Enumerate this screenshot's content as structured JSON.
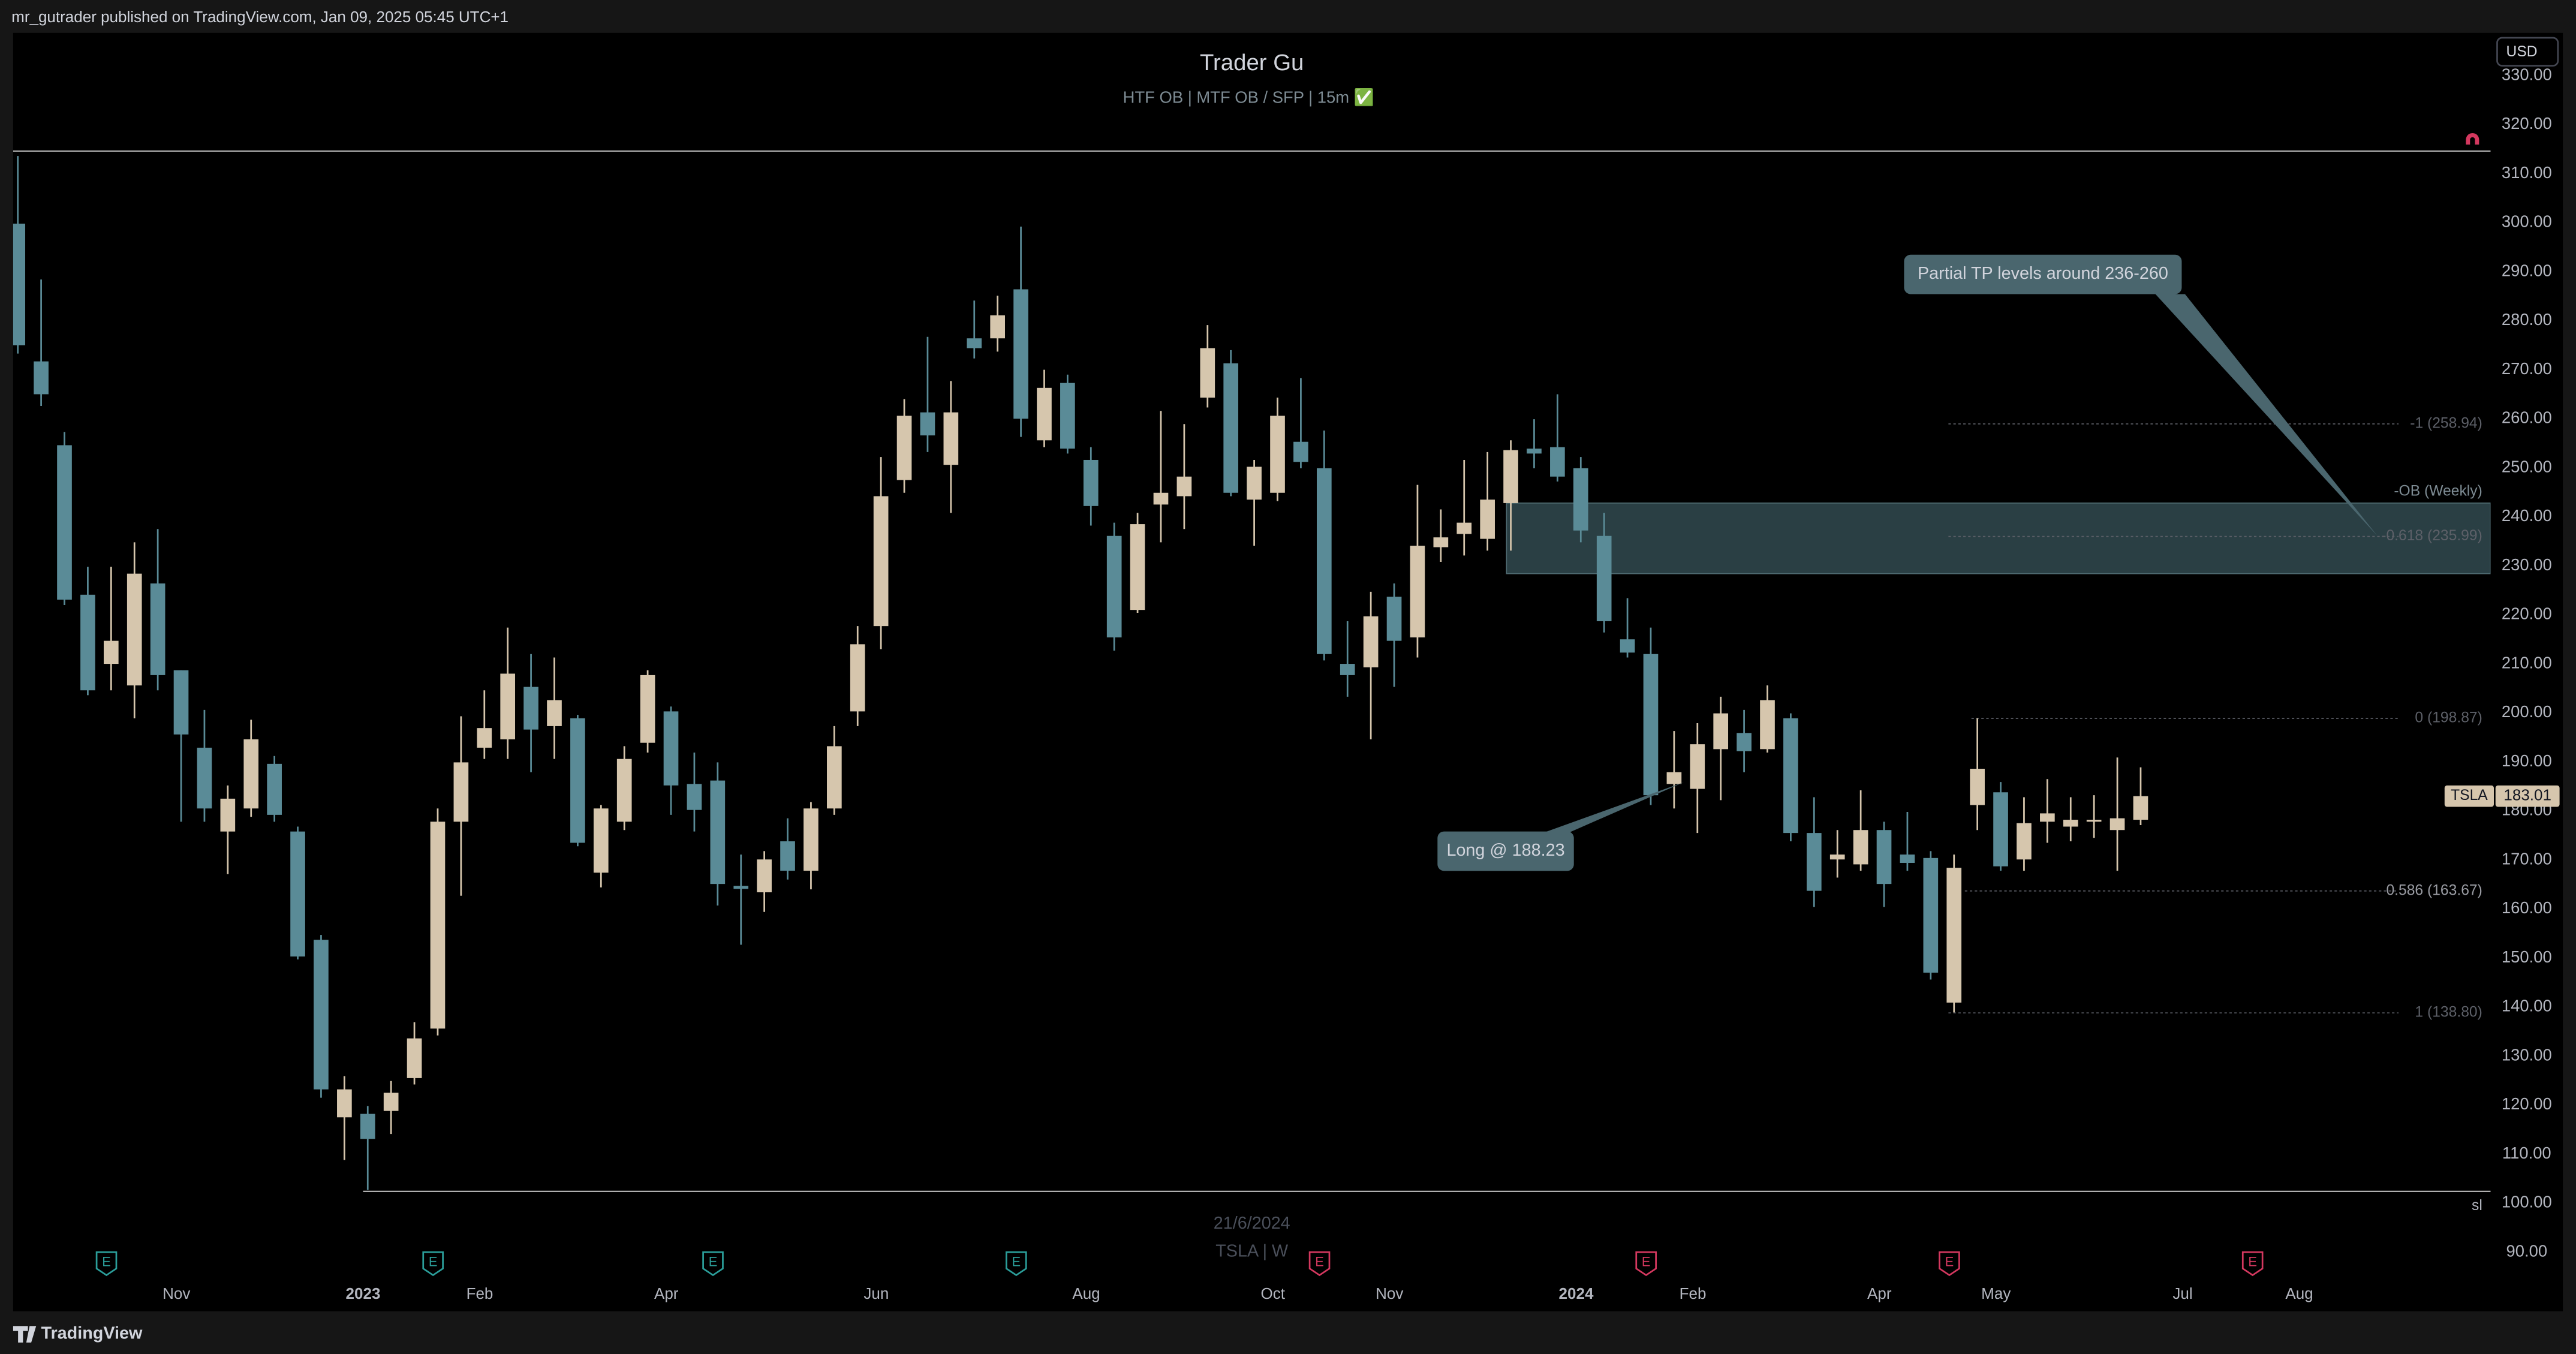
{
  "header": {
    "text": "mr_gutrader published on TradingView.com, Jan 09, 2025 05:45 UTC+1"
  },
  "footer": {
    "brand": "TradingView"
  },
  "chart_data": {
    "type": "candlestick",
    "title": "Trader Gu",
    "subtitle": "HTF OB  |  MTF OB / SFP  |  15m ✅",
    "currency": "USD",
    "watermark_date": "21/6/2024",
    "watermark_symbol": "TSLA | W",
    "up_color": "#d6c6ad",
    "down_color": "#5a8b97",
    "open": [
      299.8,
      271.7,
      254.6,
      224.1,
      210,
      205.6,
      226.4,
      208.7,
      192.9,
      175.8,
      180.5,
      189.6,
      175.8,
      153.7,
      117.5,
      118.2,
      118.8,
      125.5,
      135.6,
      177.8,
      192.9,
      194.6,
      205.3,
      197.3,
      198.9,
      167.4,
      177.8,
      193.9,
      200.3,
      185.5,
      186.2,
      164.7,
      163.4,
      173.8,
      167.8,
      180.5,
      200.3,
      217.7,
      247.5,
      261.3,
      250.6,
      276.4,
      276.4,
      286.4,
      255.6,
      267.3,
      251.6,
      236.1,
      221,
      242.5,
      244.2,
      264.3,
      271.3,
      243.5,
      244.9,
      255.3,
      249.9,
      210,
      209.3,
      223.7,
      215.4,
      233.8,
      236.5,
      235.5,
      242.8,
      253.9,
      254.2,
      249.9,
      236.1,
      215,
      212,
      185.5,
      184.5,
      192.6,
      195.9,
      192.6,
      198.9,
      175.5,
      170.1,
      169.1,
      176.1,
      171.1,
      170.4,
      140.9,
      181.2,
      183.8,
      170.1,
      177.8,
      176.8,
      177.8,
      176.1,
      178.2
    ],
    "high": [
      313.6,
      288.4,
      257.3,
      229.8,
      229.8,
      234.8,
      237.5,
      208.7,
      200.6,
      185.2,
      198.6,
      191.2,
      176.8,
      154.7,
      125.9,
      119.8,
      124.9,
      136.9,
      180.5,
      199.3,
      204.6,
      217.4,
      212,
      211.3,
      199.6,
      181.2,
      193.2,
      208.7,
      201.3,
      191.9,
      189.9,
      171.1,
      171.8,
      178.5,
      181.8,
      197.3,
      217.7,
      252.2,
      264,
      276.7,
      267.7,
      284.1,
      285.1,
      299.2,
      270,
      269,
      254.2,
      238.8,
      240.8,
      261.6,
      258.9,
      279.1,
      274,
      251.6,
      264.3,
      268.3,
      257.6,
      218.7,
      224.7,
      226.4,
      246.5,
      241.5,
      251.6,
      253.2,
      255.6,
      259.9,
      265,
      252.2,
      240.8,
      223.4,
      217.4,
      196.3,
      197.9,
      203.3,
      200.6,
      205.6,
      199.9,
      182.8,
      176.1,
      184.2,
      177.8,
      179.8,
      171.8,
      171.1,
      198.9,
      185.9,
      182.8,
      186.5,
      182.8,
      183.2,
      190.9,
      188.9
    ],
    "low": [
      273.3,
      262.6,
      222,
      203.6,
      204.6,
      198.9,
      204.6,
      177.8,
      177.8,
      167.1,
      178.8,
      177.8,
      149.7,
      121.5,
      108.8,
      102.7,
      114.1,
      124.2,
      134.2,
      162.7,
      190.6,
      190.6,
      187.9,
      190.6,
      172.8,
      164.4,
      176.1,
      191.9,
      179.2,
      175.8,
      160.7,
      152.7,
      159.4,
      166,
      164,
      179.2,
      197.3,
      213,
      244.9,
      253.2,
      240.8,
      272.3,
      273.7,
      256.3,
      254.2,
      252.9,
      238.2,
      212.7,
      220.4,
      234.8,
      237.5,
      262.3,
      244.2,
      234.1,
      243.2,
      249.9,
      210.7,
      203.3,
      194.6,
      205.3,
      211.3,
      230.8,
      232.1,
      233.1,
      233.1,
      249.9,
      247.2,
      234.8,
      216.4,
      211.3,
      181.2,
      180.5,
      175.5,
      182.2,
      187.9,
      191.9,
      173.8,
      160.4,
      166.4,
      167.8,
      160.4,
      167.8,
      145.6,
      138.9,
      176.1,
      167.8,
      167.8,
      173.5,
      173.8,
      174.5,
      167.8,
      177.1
    ],
    "close": [
      275,
      265,
      223.1,
      204.6,
      214.7,
      228.4,
      207.7,
      195.6,
      180.5,
      182.5,
      194.6,
      179.2,
      150.3,
      123.2,
      123.2,
      113.1,
      122.5,
      133.6,
      177.8,
      189.9,
      196.9,
      208,
      196.6,
      202.6,
      173.5,
      180.5,
      190.6,
      207.7,
      185.2,
      180.2,
      165.1,
      164.1,
      170.1,
      167.8,
      180.5,
      193.2,
      214,
      244.2,
      260.6,
      256.6,
      261.3,
      274.4,
      281.1,
      260,
      266.3,
      253.9,
      242.2,
      215.4,
      238.5,
      244.9,
      248.2,
      274.4,
      244.9,
      250.2,
      260.6,
      251.2,
      212,
      207.7,
      219.7,
      214.7,
      234.1,
      235.8,
      238.8,
      243.5,
      253.6,
      252.9,
      248.2,
      237.2,
      218.7,
      212.3,
      183.2,
      187.9,
      193.6,
      199.9,
      192.2,
      202.6,
      175.5,
      163.7,
      171.1,
      176.1,
      165.1,
      169.4,
      147,
      168.4,
      188.6,
      168.7,
      177.5,
      179.5,
      178.2,
      178.2,
      178.5,
      183.01
    ],
    "xlim": [
      -0.2,
      106
    ],
    "xticks": [
      {
        "value": 6.8,
        "label": "Nov"
      },
      {
        "value": 14.8,
        "label": "2023"
      },
      {
        "value": 19.8,
        "label": "Feb"
      },
      {
        "value": 27.8,
        "label": "Apr"
      },
      {
        "value": 36.8,
        "label": "Jun"
      },
      {
        "value": 45.8,
        "label": "Aug"
      },
      {
        "value": 53.8,
        "label": "Oct"
      },
      {
        "value": 58.8,
        "label": "Nov"
      },
      {
        "value": 66.8,
        "label": "2024"
      },
      {
        "value": 71.8,
        "label": "Feb"
      },
      {
        "value": 79.8,
        "label": "Apr"
      },
      {
        "value": 84.8,
        "label": "May"
      },
      {
        "value": 92.8,
        "label": "Jul"
      },
      {
        "value": 97.8,
        "label": "Aug"
      }
    ],
    "ylim": [
      90,
      330
    ],
    "yticks": [
      {
        "value": 330,
        "label": "330.00"
      },
      {
        "value": 320,
        "label": "320.00"
      },
      {
        "value": 310,
        "label": "310.00"
      },
      {
        "value": 300,
        "label": "300.00"
      },
      {
        "value": 290,
        "label": "290.00"
      },
      {
        "value": 280,
        "label": "280.00"
      },
      {
        "value": 270,
        "label": "270.00"
      },
      {
        "value": 260,
        "label": "260.00"
      },
      {
        "value": 250,
        "label": "250.00"
      },
      {
        "value": 240,
        "label": "240.00"
      },
      {
        "value": 230,
        "label": "230.00"
      },
      {
        "value": 220,
        "label": "220.00"
      },
      {
        "value": 210,
        "label": "210.00"
      },
      {
        "value": 200,
        "label": "200.00"
      },
      {
        "value": 190,
        "label": "190.00"
      },
      {
        "value": 180,
        "label": "180.00"
      },
      {
        "value": 170,
        "label": "170.00"
      },
      {
        "value": 160,
        "label": "160.00"
      },
      {
        "value": 150,
        "label": "150.00"
      },
      {
        "value": 140,
        "label": "140.00"
      },
      {
        "value": 130,
        "label": "130.00"
      },
      {
        "value": 120,
        "label": "120.00"
      },
      {
        "value": 110,
        "label": "110.00"
      },
      {
        "value": 100,
        "label": "100.00"
      },
      {
        "value": 90,
        "label": "90.00"
      }
    ],
    "hline": 314.6,
    "sl_line": {
      "label": "sl",
      "value": 102.4
    },
    "ob_zone": {
      "label": "-OB (Weekly)",
      "low": 228.4,
      "high": 242.8
    },
    "fib_levels": [
      {
        "label": "-1 (258.94)",
        "value": 258.94
      },
      {
        "label": "-0.618 (235.99)",
        "value": 235.99
      },
      {
        "label": "0 (198.87)",
        "value": 198.87
      },
      {
        "label": "0.586 (163.67)",
        "value": 163.67
      },
      {
        "label": "1 (138.80)",
        "value": 138.8
      }
    ],
    "callouts": [
      {
        "text": "Partial TP levels around 236-260"
      },
      {
        "text": "Long @ 188.23"
      }
    ],
    "last_price": {
      "symbol": "TSLA",
      "value": 183.01
    },
    "events": [
      {
        "x": 3.8,
        "label": "E",
        "color": "#2b9e9a"
      },
      {
        "x": 17.8,
        "label": "E",
        "color": "#2b9e9a"
      },
      {
        "x": 29.8,
        "label": "E",
        "color": "#2b9e9a"
      },
      {
        "x": 42.8,
        "label": "E",
        "color": "#2b9e9a"
      },
      {
        "x": 55.8,
        "label": "E",
        "color": "#d4385f"
      },
      {
        "x": 69.8,
        "label": "E",
        "color": "#d4385f"
      },
      {
        "x": 82.8,
        "label": "E",
        "color": "#d4385f"
      },
      {
        "x": 95.8,
        "label": "E",
        "color": "#d4385f"
      }
    ]
  }
}
